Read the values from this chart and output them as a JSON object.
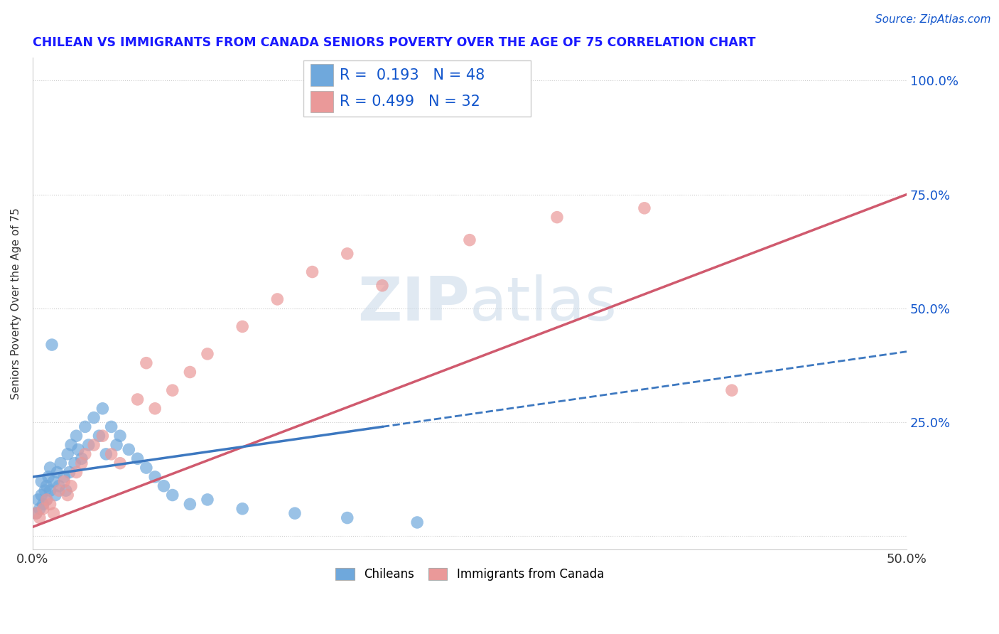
{
  "title": "CHILEAN VS IMMIGRANTS FROM CANADA SENIORS POVERTY OVER THE AGE OF 75 CORRELATION CHART",
  "source": "Source: ZipAtlas.com",
  "ylabel": "Seniors Poverty Over the Age of 75",
  "xlim": [
    0.0,
    0.5
  ],
  "ylim": [
    -0.03,
    1.05
  ],
  "chilean_color": "#6fa8dc",
  "immigrant_color": "#ea9999",
  "line_chilean_color": "#3d78c0",
  "line_immigrant_color": "#d05a6e",
  "title_color": "#1a1aff",
  "source_color": "#1155cc",
  "legend_text_color": "#1155cc",
  "r_chilean": 0.193,
  "n_chilean": 48,
  "r_immigrant": 0.499,
  "n_immigrant": 32,
  "xtick_positions": [
    0.0,
    0.05,
    0.1,
    0.15,
    0.2,
    0.25,
    0.3,
    0.35,
    0.4,
    0.45,
    0.5
  ],
  "xtick_labels": [
    "0.0%",
    "",
    "",
    "",
    "",
    "",
    "",
    "",
    "",
    "",
    "50.0%"
  ],
  "ytick_positions": [
    0.0,
    0.25,
    0.5,
    0.75,
    1.0
  ],
  "ytick_labels_right": [
    "",
    "25.0%",
    "50.0%",
    "75.0%",
    "100.0%"
  ],
  "watermark": "ZIPatlas",
  "legend_label_1": "Chileans",
  "legend_label_2": "Immigrants from Canada",
  "chileans_x": [
    0.002,
    0.003,
    0.004,
    0.005,
    0.005,
    0.006,
    0.007,
    0.008,
    0.008,
    0.009,
    0.01,
    0.01,
    0.011,
    0.012,
    0.013,
    0.014,
    0.015,
    0.016,
    0.018,
    0.019,
    0.02,
    0.021,
    0.022,
    0.024,
    0.025,
    0.026,
    0.028,
    0.03,
    0.032,
    0.035,
    0.038,
    0.04,
    0.042,
    0.045,
    0.048,
    0.05,
    0.055,
    0.06,
    0.065,
    0.07,
    0.075,
    0.08,
    0.09,
    0.1,
    0.12,
    0.15,
    0.18,
    0.22
  ],
  "chileans_y": [
    0.05,
    0.08,
    0.06,
    0.12,
    0.09,
    0.07,
    0.1,
    0.11,
    0.08,
    0.13,
    0.1,
    0.15,
    0.42,
    0.12,
    0.09,
    0.14,
    0.11,
    0.16,
    0.13,
    0.1,
    0.18,
    0.14,
    0.2,
    0.16,
    0.22,
    0.19,
    0.17,
    0.24,
    0.2,
    0.26,
    0.22,
    0.28,
    0.18,
    0.24,
    0.2,
    0.22,
    0.19,
    0.17,
    0.15,
    0.13,
    0.11,
    0.09,
    0.07,
    0.08,
    0.06,
    0.05,
    0.04,
    0.03
  ],
  "immigrants_x": [
    0.002,
    0.004,
    0.006,
    0.008,
    0.01,
    0.012,
    0.015,
    0.018,
    0.02,
    0.022,
    0.025,
    0.028,
    0.03,
    0.035,
    0.04,
    0.045,
    0.05,
    0.06,
    0.065,
    0.07,
    0.08,
    0.09,
    0.1,
    0.12,
    0.14,
    0.16,
    0.18,
    0.2,
    0.25,
    0.3,
    0.35,
    0.4
  ],
  "immigrants_y": [
    0.05,
    0.04,
    0.06,
    0.08,
    0.07,
    0.05,
    0.1,
    0.12,
    0.09,
    0.11,
    0.14,
    0.16,
    0.18,
    0.2,
    0.22,
    0.18,
    0.16,
    0.3,
    0.38,
    0.28,
    0.32,
    0.36,
    0.4,
    0.46,
    0.52,
    0.58,
    0.62,
    0.55,
    0.65,
    0.7,
    0.72,
    0.32
  ]
}
